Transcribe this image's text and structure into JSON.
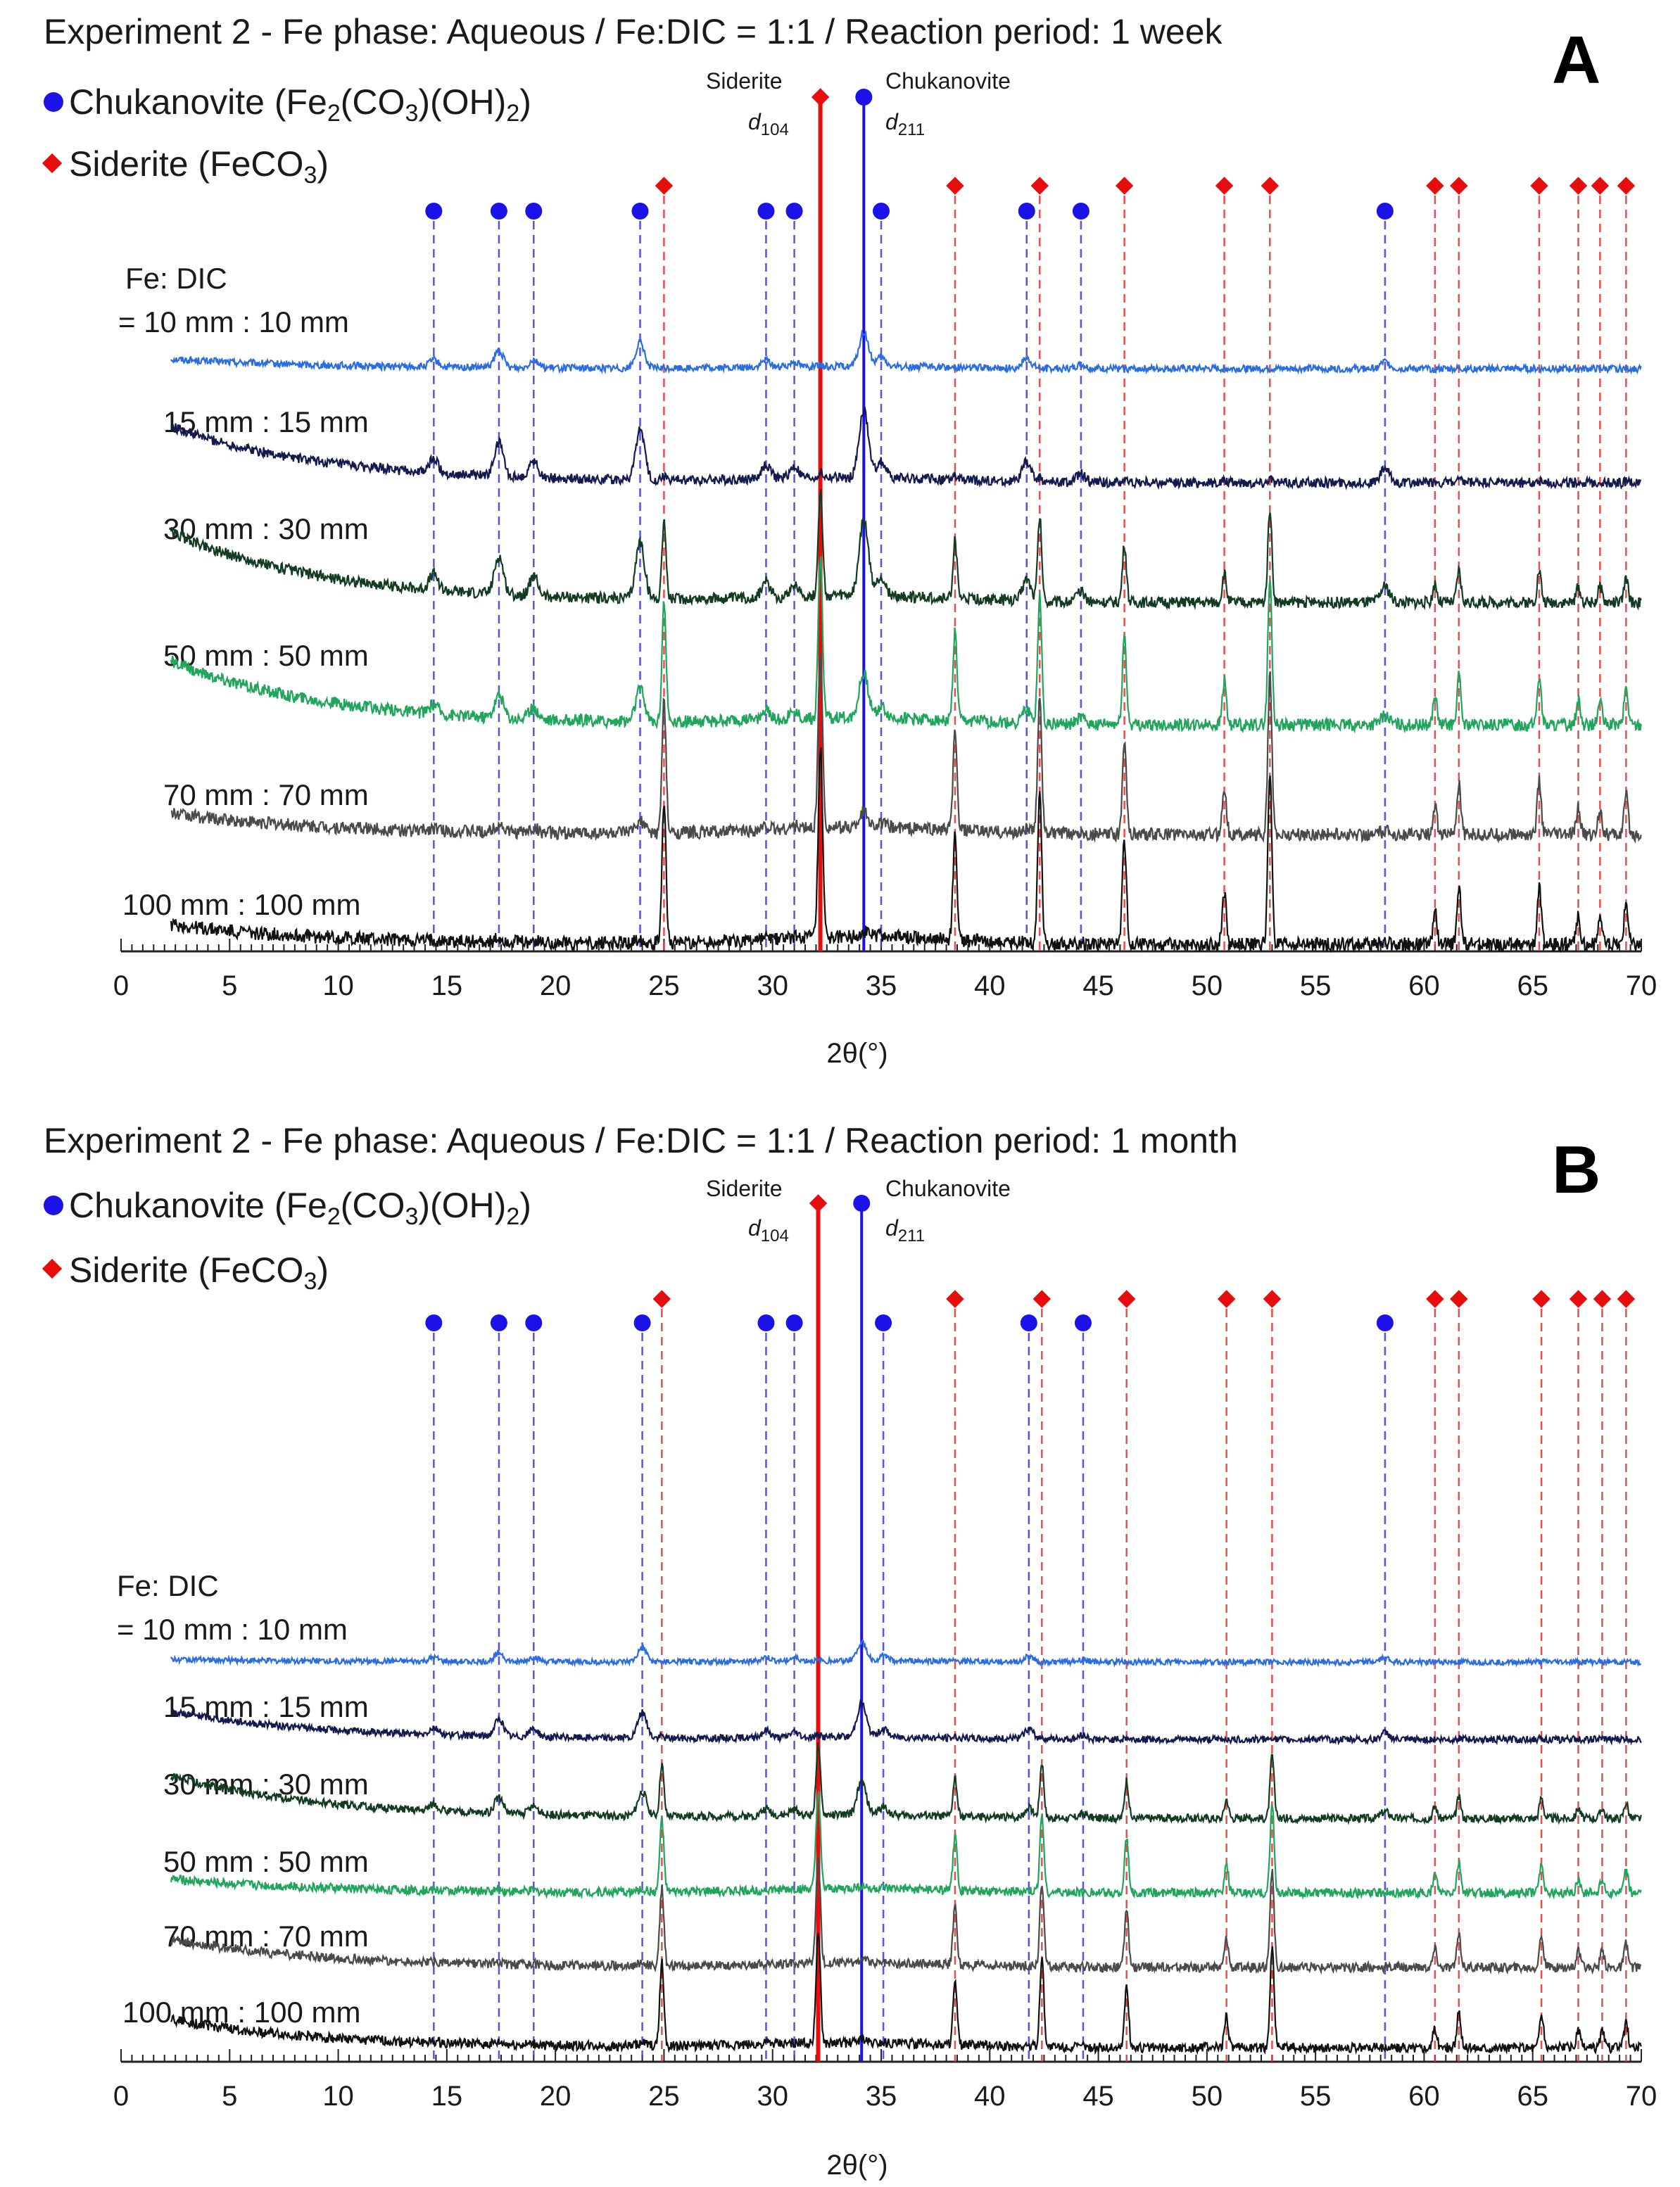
{
  "chart_data": [
    {
      "type": "line",
      "panel": "A",
      "title": "Experiment 2 - Fe phase: Aqueous / Fe:DIC = 1:1 / Reaction period: 1 week",
      "xlabel": "2θ(°)",
      "ylabel": "",
      "xlim": [
        0,
        70
      ],
      "xticks": [
        "0",
        "5",
        "10",
        "15",
        "20",
        "25",
        "30",
        "35",
        "40",
        "45",
        "50",
        "55",
        "60",
        "65",
        "70"
      ],
      "legend": [
        {
          "label": "Chukanovite (Fe2(CO3)(OH)2)",
          "marker": "circle",
          "color": "#1a12e6"
        },
        {
          "label": "Siderite (FeCO3)",
          "marker": "diamond",
          "color": "#e60d0d"
        }
      ],
      "chukanovite_peaks": [
        14.4,
        17.4,
        19.0,
        23.9,
        29.7,
        31.0,
        35.0,
        41.7,
        44.2,
        58.2
      ],
      "siderite_peaks": [
        25.0,
        38.4,
        42.3,
        46.2,
        50.8,
        52.9,
        60.5,
        61.6,
        65.3,
        67.1,
        68.1,
        69.3
      ],
      "reference_lines": [
        {
          "label": "Siderite",
          "sub": "104",
          "position": 32.2,
          "color": "#e60d0d"
        },
        {
          "label": "Chukanovite",
          "sub": "211",
          "position": 34.2,
          "color": "#1a12e6"
        }
      ],
      "series": [
        {
          "name": "Fe: DIC = 10 mm : 10 mm",
          "color": "#2b6de0"
        },
        {
          "name": "15 mm : 15 mm",
          "color": "#141a4d"
        },
        {
          "name": "30 mm : 30 mm",
          "color": "#123b22"
        },
        {
          "name": "50 mm : 50 mm",
          "color": "#21a55c"
        },
        {
          "name": "70 mm : 70 mm",
          "color": "#4a4a4a"
        },
        {
          "name": "100 mm : 100 mm",
          "color": "#111111"
        }
      ]
    },
    {
      "type": "line",
      "panel": "B",
      "title": "Experiment 2 - Fe phase: Aqueous / Fe:DIC = 1:1  / Reaction period: 1 month",
      "xlabel": "2θ(°)",
      "ylabel": "",
      "xlim": [
        0,
        70
      ],
      "xticks": [
        "0",
        "5",
        "10",
        "15",
        "20",
        "25",
        "30",
        "35",
        "40",
        "45",
        "50",
        "55",
        "60",
        "65",
        "70"
      ],
      "legend": [
        {
          "label": "Chukanovite (Fe2(CO3)(OH)2)",
          "marker": "circle",
          "color": "#1a12e6"
        },
        {
          "label": "Siderite (FeCO3)",
          "marker": "diamond",
          "color": "#e60d0d"
        }
      ],
      "chukanovite_peaks": [
        14.4,
        17.4,
        19.0,
        24.0,
        29.7,
        31.0,
        35.1,
        41.8,
        44.3,
        58.2
      ],
      "siderite_peaks": [
        24.9,
        38.4,
        42.4,
        46.3,
        50.9,
        53.0,
        60.5,
        61.6,
        65.4,
        67.1,
        68.2,
        69.3
      ],
      "reference_lines": [
        {
          "label": "Siderite",
          "sub": "104",
          "position": 32.1,
          "color": "#e60d0d"
        },
        {
          "label": "Chukanovite",
          "sub": "211",
          "position": 34.1,
          "color": "#1a12e6"
        }
      ],
      "series": [
        {
          "name": "Fe: DIC = 10 mm : 10 mm",
          "color": "#2b6de0"
        },
        {
          "name": "15 mm : 15 mm",
          "color": "#141a4d"
        },
        {
          "name": "30 mm : 30 mm",
          "color": "#123b22"
        },
        {
          "name": "50 mm : 50 mm",
          "color": "#21a55c"
        },
        {
          "name": "70 mm : 70 mm",
          "color": "#4a4a4a"
        },
        {
          "name": "100 mm : 100 mm",
          "color": "#111111"
        }
      ]
    }
  ],
  "panels": [
    {
      "letter": "A",
      "title": "Experiment 2 - Fe phase: Aqueous / Fe:DIC = 1:1 / Reaction period: 1 week",
      "legend_chuk": {
        "pre": "Chukanovite (Fe",
        "s1": "2",
        "mid": "(CO",
        "s2": "3",
        "post": ")(OH)",
        "s3": "2",
        "end": ")"
      },
      "legend_sid": {
        "pre": "Siderite (FeCO",
        "s1": "3",
        "end": ")"
      },
      "ref_sid": {
        "label": "Siderite",
        "d": "d",
        "sub": "104"
      },
      "ref_chuk": {
        "label": "Chukanovite",
        "d": "d",
        "sub": "211"
      },
      "fe_dic_header": "Fe: DIC",
      "sample_labels": [
        "= 10 mm : 10 mm",
        "15 mm : 15 mm",
        "30 mm : 30 mm",
        "50 mm : 50 mm",
        "70 mm : 70 mm",
        "100 mm : 100 mm"
      ],
      "x_label": "2θ(°)"
    },
    {
      "letter": "B",
      "title": "Experiment 2 - Fe phase: Aqueous / Fe:DIC = 1:1  / Reaction period: 1 month",
      "legend_chuk": {
        "pre": "Chukanovite (Fe",
        "s1": "2",
        "mid": "(CO",
        "s2": "3",
        "post": ")(OH)",
        "s3": "2",
        "end": ")"
      },
      "legend_sid": {
        "pre": "Siderite (FeCO",
        "s1": "3",
        "end": ")"
      },
      "ref_sid": {
        "label": "Siderite",
        "d": "d",
        "sub": "104"
      },
      "ref_chuk": {
        "label": "Chukanovite",
        "d": "d",
        "sub": "211"
      },
      "fe_dic_header": "Fe: DIC",
      "sample_labels": [
        "= 10 mm : 10 mm",
        "15 mm : 15 mm",
        "30 mm : 30 mm",
        "50 mm : 50 mm",
        "70 mm : 70 mm",
        "100 mm : 100 mm"
      ],
      "x_label": "2θ(°)"
    }
  ]
}
